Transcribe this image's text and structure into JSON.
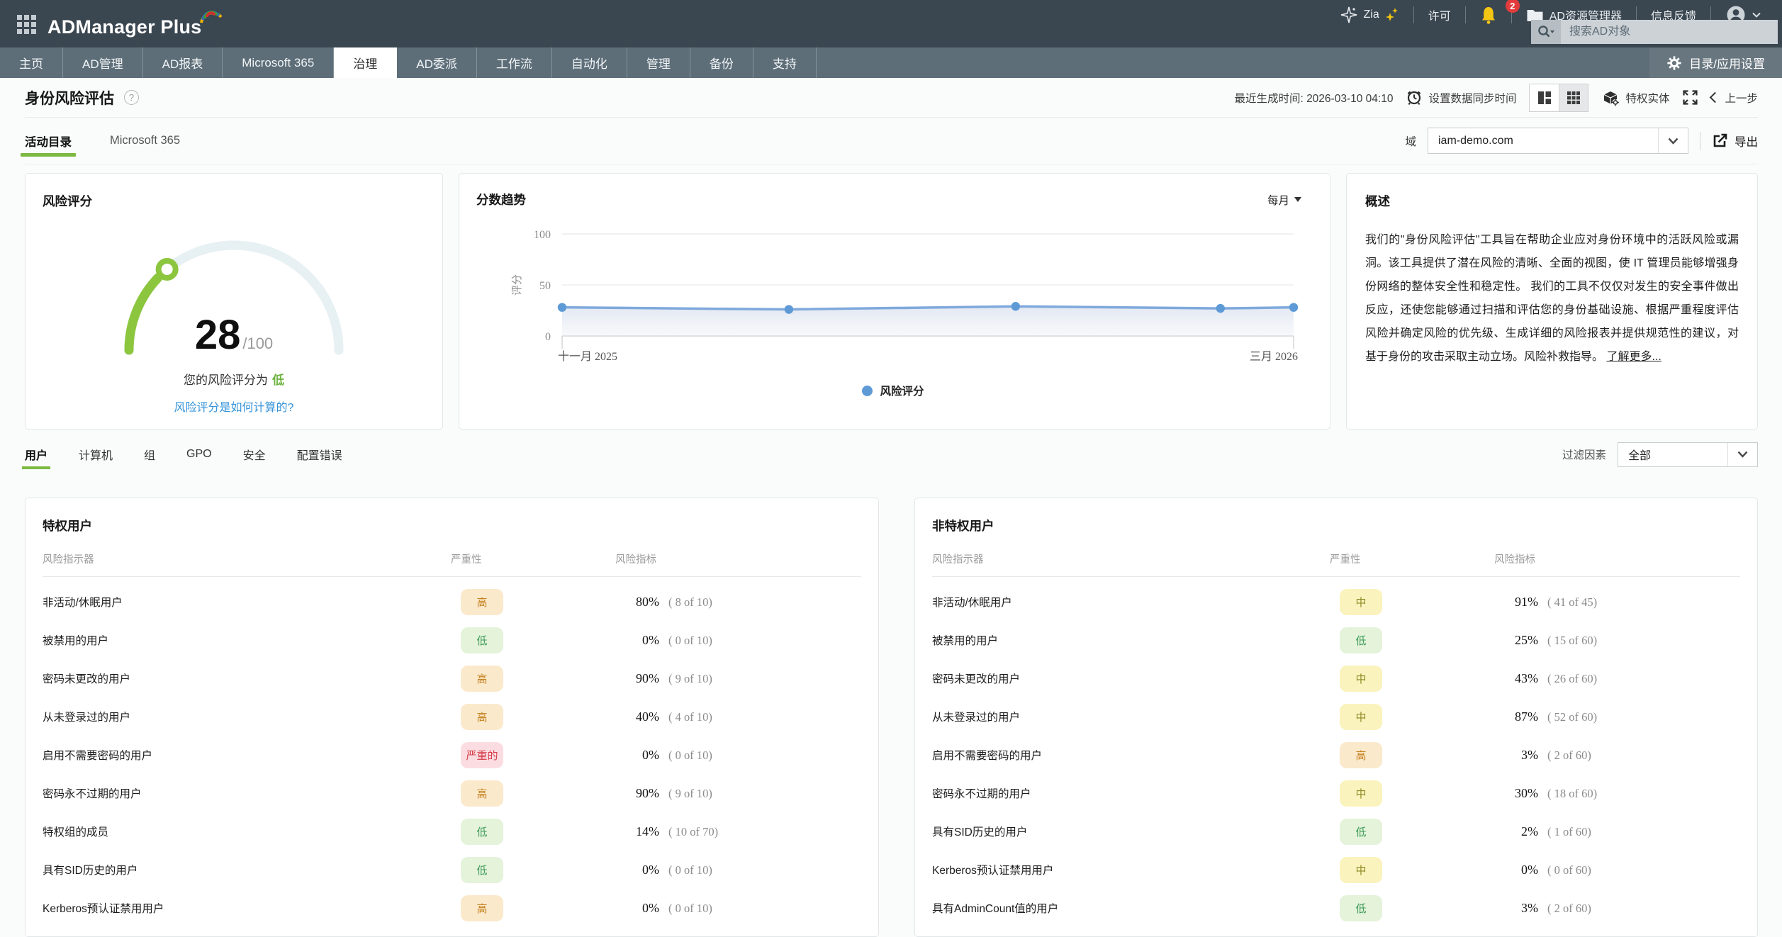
{
  "topbar": {
    "app_name": "ADManager Plus",
    "menu": {
      "zia": "Zia",
      "license": "许可",
      "notifications_count": "2",
      "ad_explorer": "AD资源管理器",
      "feedback": "信息反馈"
    },
    "search_placeholder": "搜索AD对象"
  },
  "nav": {
    "tabs": [
      "主页",
      "AD管理",
      "AD报表",
      "Microsoft 365",
      "治理",
      "AD委派",
      "工作流",
      "自动化",
      "管理",
      "备份",
      "支持"
    ],
    "active": "治理",
    "settings_label": "目录/应用设置"
  },
  "page": {
    "title": "身份风险评估",
    "last_generated": "最近生成时间: 2026-03-10 04:10",
    "set_sync_label": "设置数据同步时间",
    "privileged_entities_label": "特权实体",
    "back_label": "上一步",
    "tabs": [
      "活动目录",
      "Microsoft 365"
    ],
    "active_tab": "活动目录",
    "domain_label": "域",
    "domain_value": "iam-demo.com",
    "export_label": "导出"
  },
  "risk_score": {
    "title": "风险评分",
    "score": 28,
    "max": "/100",
    "caption": "您的风险评分为",
    "level": "低",
    "link": "风险评分是如何计算的?"
  },
  "chart_data": {
    "type": "area",
    "title": "分数趋势",
    "interval_label": "每月",
    "ylabel": "评分",
    "ylim": [
      0,
      100
    ],
    "yticks": [
      0,
      50,
      100
    ],
    "x_start_label": "十一月 2025",
    "x_end_label": "三月 2026",
    "series": [
      {
        "name": "风险评分",
        "x_fractions": [
          0,
          0.31,
          0.62,
          0.9,
          1
        ],
        "values": [
          28,
          26,
          29,
          27,
          28
        ]
      }
    ],
    "legend_position": "bottom",
    "grid": true,
    "line_color": "#7fa9dc",
    "dot_color": "#5e9ad6"
  },
  "overview": {
    "title": "概述",
    "text": "我们的\"身份风险评估\"工具旨在帮助企业应对身份环境中的活跃风险或漏洞。该工具提供了潜在风险的清晰、全面的视图，使 IT 管理员能够增强身份网络的整体安全性和稳定性。 我们的工具不仅仅对发生的安全事件做出反应，还使您能够通过扫描和评估您的身份基础设施、根据严重程度评估风险并确定风险的优先级、生成详细的风险报表并提供规范性的建议，对基于身份的攻击采取主动立场。风险补救指导。",
    "link": "了解更多..."
  },
  "filters": {
    "tabs": [
      "用户",
      "计算机",
      "组",
      "GPO",
      "安全",
      "配置错误"
    ],
    "active": "用户",
    "filter_label": "过滤因素",
    "filter_value": "全部"
  },
  "tables": {
    "headers": [
      "风险指示器",
      "严重性",
      "风险指标"
    ],
    "privileged": {
      "title": "特权用户",
      "rows": [
        {
          "name": "非活动/休眠用户",
          "severity": "高",
          "level": "high",
          "percent": "80%",
          "count": "( 8 of 10)"
        },
        {
          "name": "被禁用的用户",
          "severity": "低",
          "level": "low",
          "percent": "0%",
          "count": "( 0 of 10)"
        },
        {
          "name": "密码未更改的用户",
          "severity": "高",
          "level": "high",
          "percent": "90%",
          "count": "( 9 of 10)"
        },
        {
          "name": "从未登录过的用户",
          "severity": "高",
          "level": "high",
          "percent": "40%",
          "count": "( 4 of 10)"
        },
        {
          "name": "启用不需要密码的用户",
          "severity": "严重的",
          "level": "critical",
          "percent": "0%",
          "count": "( 0 of 10)"
        },
        {
          "name": "密码永不过期的用户",
          "severity": "高",
          "level": "high",
          "percent": "90%",
          "count": "( 9 of 10)"
        },
        {
          "name": "特权组的成员",
          "severity": "低",
          "level": "low",
          "percent": "14%",
          "count": "( 10 of 70)"
        },
        {
          "name": "具有SID历史的用户",
          "severity": "低",
          "level": "low",
          "percent": "0%",
          "count": "( 0 of 10)"
        },
        {
          "name": "Kerberos预认证禁用用户",
          "severity": "高",
          "level": "high",
          "percent": "0%",
          "count": "( 0 of 10)"
        }
      ]
    },
    "non_privileged": {
      "title": "非特权用户",
      "rows": [
        {
          "name": "非活动/休眠用户",
          "severity": "中",
          "level": "medium",
          "percent": "91%",
          "count": "( 41 of 45)"
        },
        {
          "name": "被禁用的用户",
          "severity": "低",
          "level": "low",
          "percent": "25%",
          "count": "( 15 of 60)"
        },
        {
          "name": "密码未更改的用户",
          "severity": "中",
          "level": "medium",
          "percent": "43%",
          "count": "( 26 of 60)"
        },
        {
          "name": "从未登录过的用户",
          "severity": "中",
          "level": "medium",
          "percent": "87%",
          "count": "( 52 of 60)"
        },
        {
          "name": "启用不需要密码的用户",
          "severity": "高",
          "level": "high",
          "percent": "3%",
          "count": "( 2 of 60)"
        },
        {
          "name": "密码永不过期的用户",
          "severity": "中",
          "level": "medium",
          "percent": "30%",
          "count": "( 18 of 60)"
        },
        {
          "name": "具有SID历史的用户",
          "severity": "低",
          "level": "low",
          "percent": "2%",
          "count": "( 1 of 60)"
        },
        {
          "name": "Kerberos预认证禁用用户",
          "severity": "中",
          "level": "medium",
          "percent": "0%",
          "count": "( 0 of 60)"
        },
        {
          "name": "具有AdminCount值的用户",
          "severity": "低",
          "level": "low",
          "percent": "3%",
          "count": "( 2 of 60)"
        }
      ]
    }
  },
  "colors": {
    "topbar_bg": "#3a4650",
    "nav_bg": "#5d6e79",
    "accent_green": "#7cb940",
    "link_blue": "#3493d9",
    "gauge_green": "#8cc63f",
    "gauge_track": "#e7f0f2",
    "chart_line": "#7fa9dc",
    "chart_dot": "#5e9ad6",
    "bell_yellow": "#f3c515",
    "notification_red": "#e23b3b",
    "badge_high_bg": "#fbe9cc",
    "badge_high_text": "#c5821f",
    "badge_low_bg": "#e4f3da",
    "badge_low_text": "#3c9a57",
    "badge_medium_bg": "#faf3bd",
    "badge_medium_text": "#8f8a24",
    "badge_critical_bg": "#fbdde1",
    "badge_critical_text": "#d63a47"
  }
}
